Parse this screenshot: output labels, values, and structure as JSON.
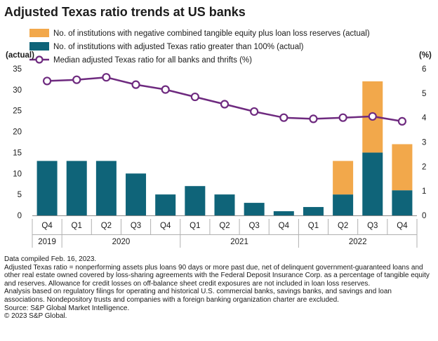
{
  "title": "Adjusted Texas ratio trends at US banks",
  "chart_data": {
    "type": "bar+line",
    "title": "Adjusted Texas ratio trends at US banks",
    "left_axis_label": "(actual)",
    "right_axis_label": "(%)",
    "left_ylim": [
      0,
      35
    ],
    "left_ticks": [
      0,
      5,
      10,
      15,
      20,
      25,
      30,
      35
    ],
    "right_ylim": [
      0,
      6
    ],
    "right_ticks": [
      0,
      1,
      2,
      3,
      4,
      5,
      6
    ],
    "quarters": [
      "Q4",
      "Q1",
      "Q2",
      "Q3",
      "Q4",
      "Q1",
      "Q2",
      "Q3",
      "Q4",
      "Q1",
      "Q2",
      "Q3",
      "Q4"
    ],
    "years": [
      {
        "label": "2019",
        "start": 0,
        "end": 0
      },
      {
        "label": "2020",
        "start": 1,
        "end": 4
      },
      {
        "label": "2021",
        "start": 5,
        "end": 8
      },
      {
        "label": "2022",
        "start": 9,
        "end": 12
      }
    ],
    "series": [
      {
        "name": "No. of institutions with negative combined tangible equity plus loan loss reserves (actual)",
        "kind": "bar-stacked",
        "axis": "left",
        "color": "#F2A84B",
        "values": [
          0,
          0,
          0,
          0,
          0,
          0,
          0,
          0,
          0,
          0,
          8,
          17,
          11
        ]
      },
      {
        "name": "No. of institutions with adjusted Texas ratio greater than 100% (actual)",
        "kind": "bar",
        "axis": "left",
        "color": "#0F6479",
        "values": [
          13,
          13,
          13,
          10,
          5,
          7,
          5,
          3,
          1,
          2,
          5,
          15,
          6
        ]
      },
      {
        "name": "Median adjusted Texas ratio for all banks and thrifts (%)",
        "kind": "line",
        "axis": "right",
        "color": "#6E2A7F",
        "values": [
          5.5,
          5.55,
          5.65,
          5.35,
          5.15,
          4.85,
          4.55,
          4.25,
          4.0,
          3.95,
          4.0,
          4.05,
          3.85
        ]
      }
    ]
  },
  "notes": [
    "Data compiled Feb. 16, 2023.",
    "Adjusted Texas ratio = nonperforming assets plus loans 90 days or more past due, net of delinquent government-guaranteed loans and other real estate owned covered by loss-sharing agreements with the Federal Deposit Insurance Corp. as a percentage of tangible equity and reserves. Allowance for credit losses on off-balance sheet credit exposures are not included in loan loss reserves.",
    "Analysis based on regulatory filings for operating and historical U.S. commercial banks, savings banks, and savings and loan associations. Nondepository trusts and companies with a foreign banking organization charter are excluded.",
    "Source: S&P Global Market Intelligence.",
    "© 2023 S&P Global."
  ]
}
